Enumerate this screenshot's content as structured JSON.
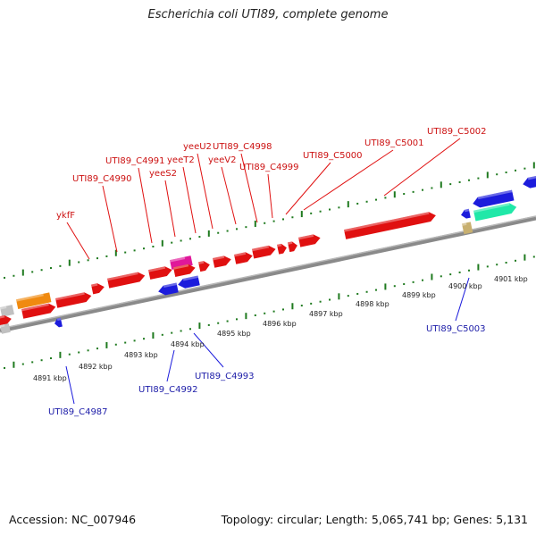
{
  "title": "Escherichia coli UTI89, complete genome",
  "footer": {
    "accession": "Accession: NC_007946",
    "topology": "Topology: circular; Length: 5,065,741 bp; Genes: 5,131"
  },
  "colors": {
    "forward": "#e01010",
    "reverse": "#1c1cdc",
    "orange": "#f08a10",
    "magenta": "#e0189a",
    "teal": "#20e8a8",
    "tan": "#c8b070",
    "gray": "#c0c0c0",
    "backbone": "#8a8a8a",
    "ticks": "#1f7a1f",
    "label_fwd": "#cc1111",
    "label_rev": "#1c1ca8"
  },
  "scale_kbp": [
    "4891 kbp",
    "4892 kbp",
    "4893 kbp",
    "4894 kbp",
    "4895 kbp",
    "4896 kbp",
    "4897 kbp",
    "4898 kbp",
    "4899 kbp",
    "4900 kbp",
    "4901 kbp"
  ],
  "forward_gene_labels": [
    "ykfF",
    "UTI89_C4990",
    "UTI89_C4991",
    "yeeS2",
    "yeeT2",
    "yeeU2",
    "UTI89_C4998",
    "yeeV2",
    "UTI89_C4999",
    "UTI89_C5000",
    "UTI89_C5001",
    "UTI89_C5002"
  ],
  "reverse_gene_labels": [
    "UTI89_C4987",
    "UTI89_C4992",
    "UTI89_C4993",
    "UTI89_C5003"
  ]
}
